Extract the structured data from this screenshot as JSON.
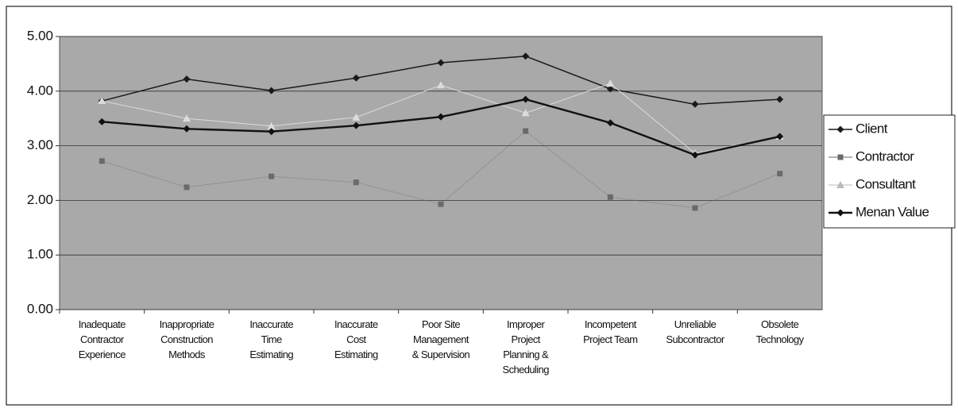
{
  "chart_data": {
    "type": "line",
    "categories": [
      "Inadequate\nContractor\nExperience",
      "Inappropriate\nConstruction\nMethods",
      "Inaccurate\nTime\nEstimating",
      "Inaccurate\nCost\nEstimating",
      "Poor Site\nManagement\n& Supervision",
      "Improper\nProject\nPlanning &\nScheduling",
      "Incompetent\nProject Team",
      "Unreliable\nSubcontractor",
      "Obsolete\nTechnology"
    ],
    "series": [
      {
        "name": "Client",
        "color": "#1a1a1a",
        "marker": "diamond",
        "values": [
          3.82,
          4.22,
          4.01,
          4.24,
          4.52,
          4.64,
          4.04,
          3.76,
          3.85
        ]
      },
      {
        "name": "Contractor",
        "color": "#6a6a6a",
        "marker": "square",
        "values": [
          2.72,
          2.24,
          2.44,
          2.33,
          1.93,
          3.27,
          2.06,
          1.86,
          2.49
        ]
      },
      {
        "name": "Consultant",
        "color": "#dcdcdc",
        "marker": "triangle",
        "values": [
          3.82,
          3.5,
          3.36,
          3.52,
          4.11,
          3.6,
          4.14,
          2.86,
          3.17
        ]
      },
      {
        "name": "Menan Value",
        "color": "#111111",
        "marker": "diamond",
        "values": [
          3.44,
          3.31,
          3.26,
          3.37,
          3.53,
          3.85,
          3.42,
          2.83,
          3.17
        ]
      }
    ],
    "ylim": [
      0,
      5
    ],
    "yticks": [
      {
        "value": 0,
        "label": "0.00"
      },
      {
        "value": 1,
        "label": "1.00"
      },
      {
        "value": 2,
        "label": "2.00"
      },
      {
        "value": 3,
        "label": "3.00"
      },
      {
        "value": 4,
        "label": "4.00"
      },
      {
        "value": 5,
        "label": "5.00"
      }
    ],
    "grid": true,
    "legend": "right",
    "plot_background": "#a9a9a9"
  }
}
